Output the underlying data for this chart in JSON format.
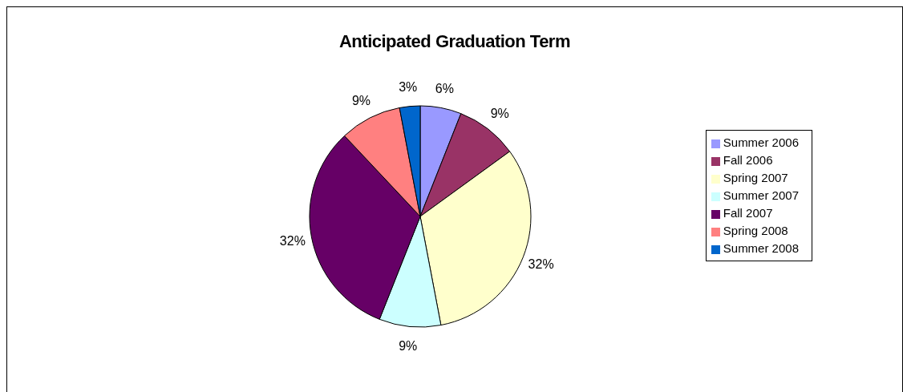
{
  "chart_data": {
    "type": "pie",
    "title": "Anticipated Graduation Term",
    "categories": [
      "Summer 2006",
      "Fall 2006",
      "Spring 2007",
      "Summer 2007",
      "Fall 2007",
      "Spring 2008",
      "Summer 2008"
    ],
    "values": [
      6,
      9,
      32,
      9,
      32,
      9,
      3
    ],
    "colors": [
      "#9999ff",
      "#993366",
      "#ffffcc",
      "#ccffff",
      "#660066",
      "#ff8080",
      "#0066cc"
    ],
    "value_labels": [
      "6%",
      "9%",
      "32%",
      "9%",
      "32%",
      "9%",
      "3%"
    ],
    "legend": "right"
  }
}
